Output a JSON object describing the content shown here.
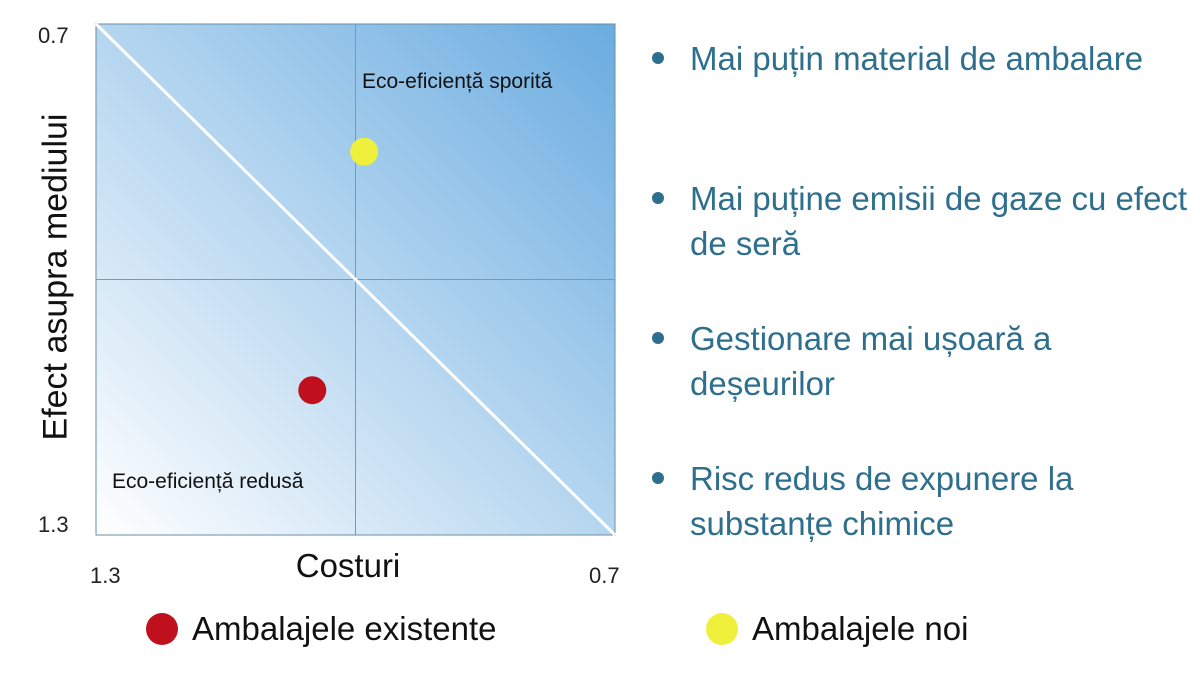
{
  "chart_data": {
    "type": "scatter",
    "xlabel": "Costuri",
    "ylabel": "Efect asupra mediului",
    "xlim": [
      1.3,
      0.7
    ],
    "ylim": [
      1.3,
      0.7
    ],
    "x_tick_labels": [
      "1.3",
      "0.7"
    ],
    "y_tick_labels": [
      "0.7",
      "1.3"
    ],
    "reference_lines": {
      "x": 1.0,
      "y": 1.0,
      "diagonal": "from (1.3, 0.7) to (0.7, 1.3)"
    },
    "quadrant_labels": {
      "high": "Eco-eficiență sporită",
      "low": "Eco-eficiență redusă"
    },
    "series": [
      {
        "name": "Ambalajele existente",
        "color": "#c0101e",
        "x": 1.05,
        "y": 1.13
      },
      {
        "name": "Ambalajele noi",
        "color": "#eef03c",
        "x": 0.99,
        "y": 0.85
      }
    ],
    "background_colors": {
      "light": "#ffffff",
      "dark": "#6aace0"
    },
    "grid": false,
    "legend": "bottom"
  },
  "bullets": [
    "Mai puțin material de ambalare",
    "Mai puține emisii de gaze cu efect de seră",
    "Gestionare mai ușoară a deșeurilor",
    "Risc redus de expunere la substanțe chimice"
  ],
  "bullet_color": "#2e6f8e"
}
